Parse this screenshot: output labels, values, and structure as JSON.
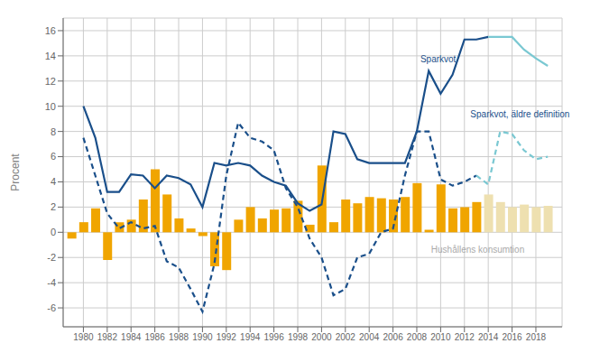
{
  "chart_data": {
    "type": "bar",
    "ylabel": "Procent",
    "x": [
      1979,
      1980,
      1981,
      1982,
      1983,
      1984,
      1985,
      1986,
      1987,
      1988,
      1989,
      1990,
      1991,
      1992,
      1993,
      1994,
      1995,
      1996,
      1997,
      1998,
      1999,
      2000,
      2001,
      2002,
      2003,
      2004,
      2005,
      2006,
      2007,
      2008,
      2009,
      2010,
      2011,
      2012,
      2013,
      2014,
      2015,
      2016,
      2017,
      2018,
      2019
    ],
    "series": [
      {
        "type": "bar",
        "values": [
          -0.5,
          0.8,
          1.9,
          -2.2,
          0.8,
          1.0,
          2.6,
          5.0,
          3.0,
          1.1,
          0.3,
          -0.3,
          -2.7,
          -3.0,
          1.0,
          2.0,
          1.1,
          1.8,
          1.9,
          2.5,
          0.6,
          5.3,
          0.8,
          2.6,
          2.3,
          2.8,
          2.7,
          2.6,
          2.8,
          3.9,
          0.2,
          3.8,
          1.9,
          2.0,
          2.4,
          3.0,
          2.4,
          2.0,
          2.2,
          2.0,
          2.1
        ],
        "colors": [
          "#F0A500",
          "#F0A500",
          "#F0A500",
          "#F0A500",
          "#F0A500",
          "#F0A500",
          "#F0A500",
          "#F0A500",
          "#F0A500",
          "#F0A500",
          "#F0A500",
          "#F0A500",
          "#F0A500",
          "#F0A500",
          "#F0A500",
          "#F0A500",
          "#F0A500",
          "#F0A500",
          "#F0A500",
          "#F0A500",
          "#F0A500",
          "#F0A500",
          "#F0A500",
          "#F0A500",
          "#F0A500",
          "#F0A500",
          "#F0A500",
          "#F0A500",
          "#F0A500",
          "#F0A500",
          "#F0A500",
          "#F0A500",
          "#F0A500",
          "#F0A500",
          "#F0A500",
          "#EEE0B0",
          "#EEE0B0",
          "#EEE0B0",
          "#EEE0B0",
          "#EEE0B0",
          "#EEE0B0"
        ]
      },
      {
        "type": "line",
        "color": "#1A4F8A",
        "line_style": "solid",
        "values": [
          null,
          10.0,
          7.5,
          3.2,
          3.2,
          4.6,
          4.5,
          3.5,
          4.5,
          4.3,
          3.8,
          2.0,
          5.5,
          5.3,
          5.5,
          5.3,
          4.5,
          4.0,
          3.7,
          2.3,
          1.7,
          2.2,
          8.0,
          7.8,
          5.8,
          5.5,
          5.5,
          5.5,
          5.5,
          8.0,
          12.8,
          11.0,
          12.5,
          15.3,
          15.3,
          15.5,
          null,
          null,
          null,
          null,
          null
        ]
      },
      {
        "type": "line",
        "color": "#7AC8D2",
        "line_style": "solid",
        "values": [
          null,
          null,
          null,
          null,
          null,
          null,
          null,
          null,
          null,
          null,
          null,
          null,
          null,
          null,
          null,
          null,
          null,
          null,
          null,
          null,
          null,
          null,
          null,
          null,
          null,
          null,
          null,
          null,
          null,
          null,
          null,
          null,
          null,
          null,
          null,
          15.5,
          15.5,
          15.5,
          14.5,
          13.8,
          13.2
        ]
      },
      {
        "type": "line",
        "color": "#1A4F8A",
        "line_style": "dashed",
        "values": [
          null,
          7.5,
          4.5,
          1.5,
          0.3,
          0.8,
          0.3,
          0.5,
          -2.3,
          -2.8,
          -4.5,
          -6.3,
          -2.5,
          4.5,
          8.7,
          7.5,
          7.2,
          6.5,
          3.5,
          2.0,
          -0.5,
          -2.0,
          -5.0,
          -4.5,
          -2.0,
          -1.7,
          0.0,
          0.3,
          4.5,
          8.0,
          8.0,
          4.2,
          3.7,
          4.0,
          4.5,
          null,
          null,
          null,
          null,
          null,
          null
        ]
      },
      {
        "type": "line",
        "color": "#7AC8D2",
        "line_style": "dashed",
        "values": [
          null,
          null,
          null,
          null,
          null,
          null,
          null,
          null,
          null,
          null,
          null,
          null,
          null,
          null,
          null,
          null,
          null,
          null,
          null,
          null,
          null,
          null,
          null,
          null,
          null,
          null,
          null,
          null,
          null,
          null,
          null,
          null,
          null,
          null,
          4.5,
          3.8,
          8.0,
          7.8,
          6.5,
          5.8,
          6.0
        ]
      }
    ],
    "xlim": [
      1978.3,
      2020.2
    ],
    "xticks": [
      1980,
      1982,
      1984,
      1986,
      1988,
      1990,
      1992,
      1994,
      1996,
      1998,
      2000,
      2002,
      2004,
      2006,
      2008,
      2010,
      2012,
      2014,
      2016,
      2018
    ],
    "ylim": [
      -7.5,
      17
    ],
    "yticks": [
      -6,
      -4,
      -2,
      0,
      2,
      4,
      6,
      8,
      10,
      12,
      14,
      16
    ],
    "grid": true,
    "annotations": [
      {
        "text": "Sparkvot",
        "x": 2008.3,
        "y": 13.5,
        "color": "#1A4F8A"
      },
      {
        "text": "Sparkvot, äldre definition",
        "x": 2012.5,
        "y": 9.1,
        "color": "#1A4F8A"
      },
      {
        "text": "Hushållens konsumtion",
        "x": 2009.2,
        "y": -1.6,
        "color": "#AAAAAA"
      }
    ]
  }
}
